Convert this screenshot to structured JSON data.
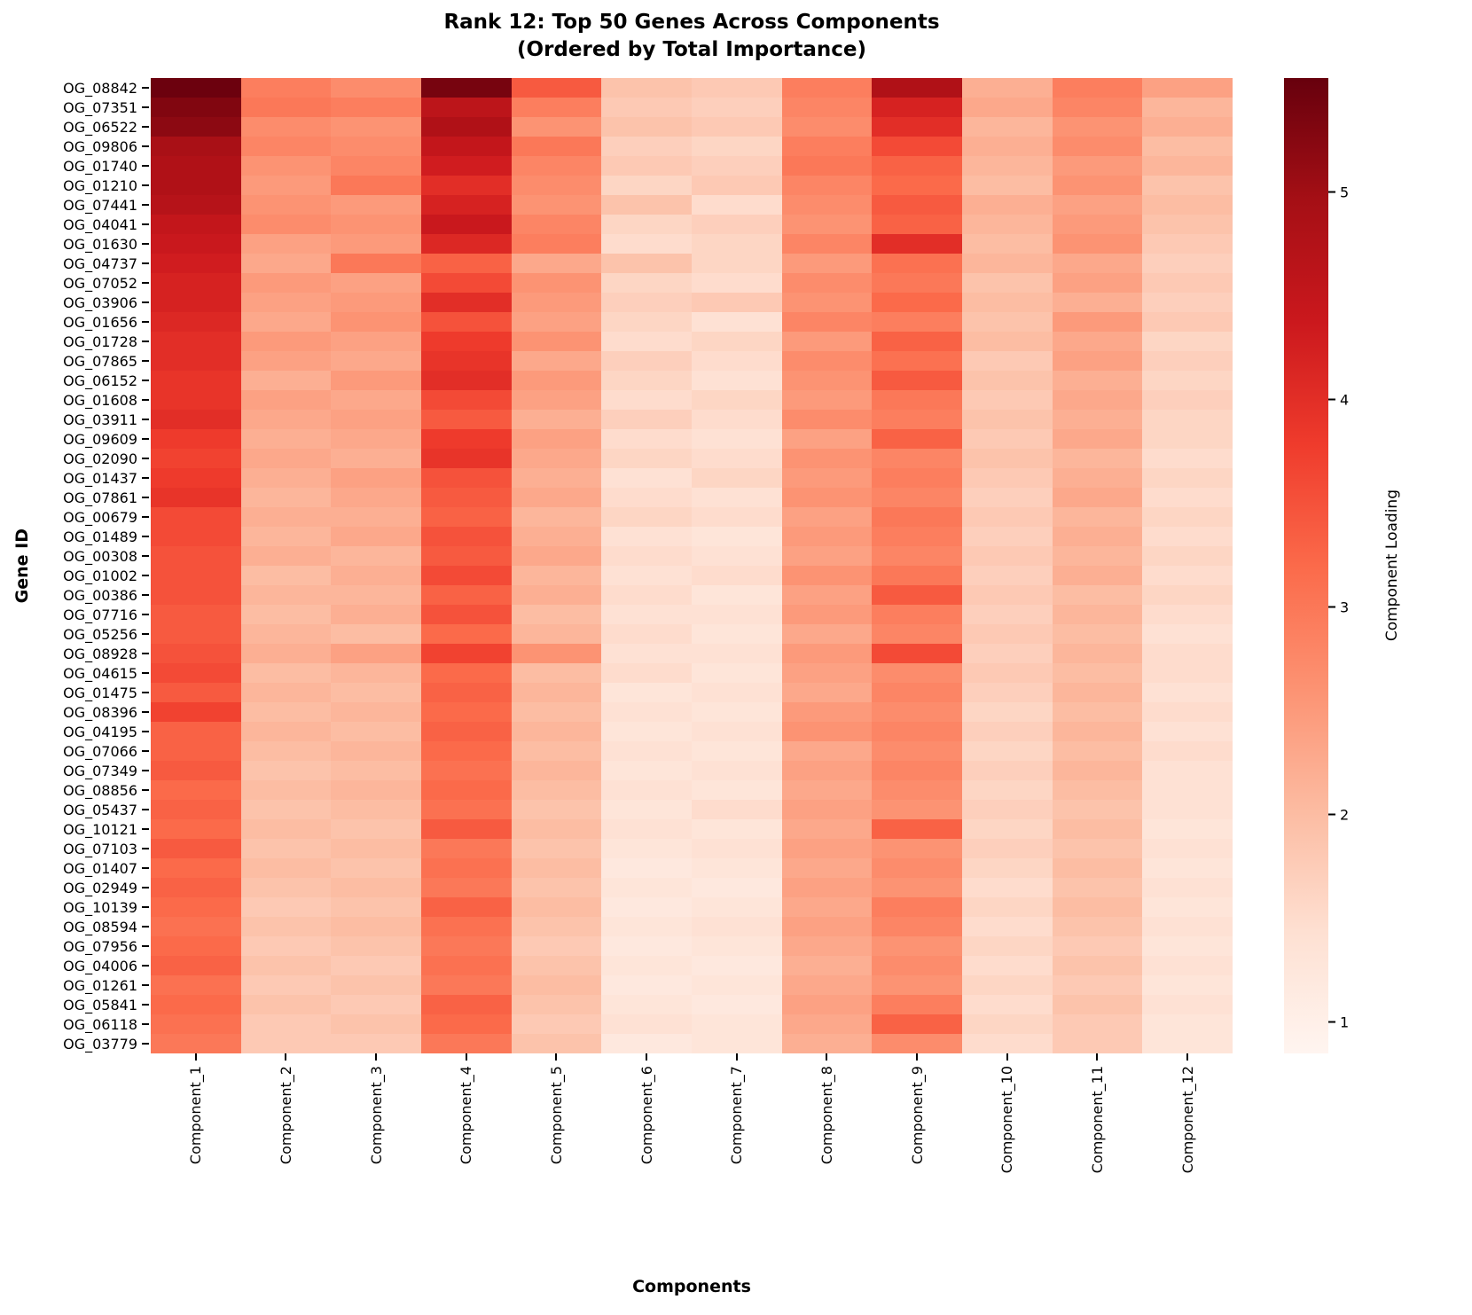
{
  "figure": {
    "title_line1": "Rank 12: Top 50 Genes Across Components",
    "title_line2": "(Ordered by Total Importance)",
    "xlabel": "Components",
    "ylabel": "Gene ID",
    "colorbar_label": "Component Loading"
  },
  "chart_data": {
    "type": "heatmap",
    "title": "Rank 12: Top 50 Genes Across Components (Ordered by Total Importance)",
    "xlabel": "Components",
    "ylabel": "Gene ID",
    "vmin": 0.85,
    "vmax": 5.55,
    "colorbar": {
      "label": "Component Loading",
      "ticks": [
        1,
        2,
        3,
        4,
        5
      ]
    },
    "colormap": {
      "name": "Reds",
      "stops": [
        [
          0.0,
          "#fff5f0"
        ],
        [
          0.125,
          "#fee0d2"
        ],
        [
          0.25,
          "#fcbba1"
        ],
        [
          0.375,
          "#fc9272"
        ],
        [
          0.5,
          "#fb6a4a"
        ],
        [
          0.625,
          "#ef3b2c"
        ],
        [
          0.75,
          "#cb181d"
        ],
        [
          0.875,
          "#a50f15"
        ],
        [
          1.0,
          "#67000d"
        ]
      ]
    },
    "categories": [
      "Component_1",
      "Component_2",
      "Component_3",
      "Component_4",
      "Component_5",
      "Component_6",
      "Component_7",
      "Component_8",
      "Component_9",
      "Component_10",
      "Component_11",
      "Component_12"
    ],
    "genes": [
      "OG_08842",
      "OG_07351",
      "OG_06522",
      "OG_09806",
      "OG_01740",
      "OG_01210",
      "OG_07441",
      "OG_04041",
      "OG_01630",
      "OG_04737",
      "OG_07052",
      "OG_03906",
      "OG_01656",
      "OG_01728",
      "OG_07865",
      "OG_06152",
      "OG_01608",
      "OG_03911",
      "OG_09609",
      "OG_02090",
      "OG_01437",
      "OG_07861",
      "OG_00679",
      "OG_01489",
      "OG_00308",
      "OG_01002",
      "OG_00386",
      "OG_07716",
      "OG_05256",
      "OG_08928",
      "OG_04615",
      "OG_01475",
      "OG_08396",
      "OG_04195",
      "OG_07066",
      "OG_07349",
      "OG_08856",
      "OG_05437",
      "OG_10121",
      "OG_07103",
      "OG_01407",
      "OG_02949",
      "OG_10139",
      "OG_08594",
      "OG_07956",
      "OG_04006",
      "OG_01261",
      "OG_05841",
      "OG_06118",
      "OG_03779"
    ],
    "matrix": [
      [
        5.5,
        2.9,
        2.7,
        5.4,
        3.4,
        1.9,
        1.8,
        2.9,
        4.8,
        2.2,
        2.9,
        2.4
      ],
      [
        5.3,
        3.0,
        2.9,
        4.6,
        2.9,
        1.8,
        1.7,
        2.8,
        4.2,
        2.3,
        2.8,
        2.1
      ],
      [
        5.2,
        2.7,
        2.6,
        4.8,
        2.6,
        1.9,
        1.8,
        2.7,
        4.0,
        2.1,
        2.6,
        2.2
      ],
      [
        4.9,
        2.8,
        2.7,
        4.5,
        3.0,
        1.7,
        1.6,
        2.9,
        3.6,
        2.2,
        2.7,
        2.0
      ],
      [
        4.8,
        2.6,
        2.8,
        4.3,
        2.8,
        1.8,
        1.7,
        3.0,
        3.3,
        2.1,
        2.5,
        2.1
      ],
      [
        4.8,
        2.5,
        3.0,
        4.0,
        2.7,
        1.6,
        1.8,
        2.8,
        3.2,
        2.0,
        2.6,
        1.9
      ],
      [
        4.7,
        2.6,
        2.5,
        4.2,
        2.6,
        1.9,
        1.5,
        2.7,
        3.4,
        2.2,
        2.4,
        2.0
      ],
      [
        4.5,
        2.7,
        2.6,
        4.4,
        2.8,
        1.6,
        1.7,
        2.6,
        3.3,
        2.1,
        2.5,
        1.9
      ],
      [
        4.4,
        2.4,
        2.5,
        4.1,
        2.9,
        1.5,
        1.6,
        2.8,
        4.0,
        2.0,
        2.6,
        1.8
      ],
      [
        4.3,
        2.3,
        3.0,
        3.3,
        2.3,
        1.9,
        1.6,
        2.5,
        3.1,
        2.1,
        2.3,
        1.7
      ],
      [
        4.2,
        2.5,
        2.4,
        3.6,
        2.6,
        1.6,
        1.5,
        2.7,
        3.0,
        1.9,
        2.4,
        1.8
      ],
      [
        4.2,
        2.4,
        2.5,
        4.0,
        2.5,
        1.7,
        1.8,
        2.6,
        3.2,
        2.0,
        2.2,
        1.7
      ],
      [
        4.1,
        2.3,
        2.6,
        3.5,
        2.4,
        1.6,
        1.4,
        2.8,
        2.9,
        1.9,
        2.5,
        1.8
      ],
      [
        4.0,
        2.5,
        2.4,
        3.8,
        2.6,
        1.5,
        1.6,
        2.5,
        3.3,
        2.0,
        2.3,
        1.6
      ],
      [
        4.0,
        2.4,
        2.3,
        3.9,
        2.3,
        1.7,
        1.5,
        2.7,
        3.1,
        1.8,
        2.4,
        1.7
      ],
      [
        3.9,
        2.2,
        2.5,
        4.0,
        2.5,
        1.6,
        1.4,
        2.6,
        3.4,
        1.9,
        2.2,
        1.6
      ],
      [
        3.9,
        2.4,
        2.3,
        3.6,
        2.4,
        1.5,
        1.6,
        2.5,
        3.0,
        1.8,
        2.3,
        1.7
      ],
      [
        4.0,
        2.3,
        2.4,
        3.4,
        2.2,
        1.7,
        1.5,
        2.7,
        2.9,
        1.9,
        2.2,
        1.6
      ],
      [
        3.8,
        2.2,
        2.3,
        3.8,
        2.4,
        1.5,
        1.4,
        2.4,
        3.3,
        1.8,
        2.3,
        1.6
      ],
      [
        3.7,
        2.3,
        2.2,
        3.9,
        2.3,
        1.6,
        1.5,
        2.6,
        2.8,
        1.9,
        2.1,
        1.5
      ],
      [
        3.8,
        2.2,
        2.4,
        3.5,
        2.2,
        1.4,
        1.6,
        2.5,
        2.9,
        1.8,
        2.2,
        1.6
      ],
      [
        3.9,
        2.1,
        2.3,
        3.4,
        2.3,
        1.5,
        1.4,
        2.6,
        2.8,
        1.7,
        2.3,
        1.5
      ],
      [
        3.6,
        2.2,
        2.2,
        3.3,
        2.1,
        1.6,
        1.5,
        2.4,
        3.0,
        1.8,
        2.1,
        1.6
      ],
      [
        3.6,
        2.1,
        2.3,
        3.5,
        2.2,
        1.4,
        1.3,
        2.5,
        2.9,
        1.7,
        2.2,
        1.5
      ],
      [
        3.5,
        2.2,
        2.1,
        3.4,
        2.3,
        1.5,
        1.4,
        2.4,
        2.8,
        1.8,
        2.1,
        1.6
      ],
      [
        3.5,
        2.0,
        2.2,
        3.6,
        2.1,
        1.4,
        1.5,
        2.6,
        3.0,
        1.7,
        2.2,
        1.5
      ],
      [
        3.5,
        2.1,
        2.1,
        3.3,
        2.2,
        1.5,
        1.3,
        2.4,
        3.4,
        1.8,
        2.0,
        1.6
      ],
      [
        3.4,
        2.0,
        2.2,
        3.5,
        2.0,
        1.4,
        1.4,
        2.5,
        2.9,
        1.7,
        2.1,
        1.5
      ],
      [
        3.4,
        2.1,
        2.0,
        3.2,
        2.1,
        1.5,
        1.3,
        2.3,
        2.8,
        1.8,
        2.0,
        1.4
      ],
      [
        3.5,
        2.2,
        2.4,
        3.7,
        2.6,
        1.4,
        1.4,
        2.5,
        3.6,
        1.7,
        2.1,
        1.5
      ],
      [
        3.6,
        2.0,
        2.1,
        3.2,
        2.0,
        1.5,
        1.3,
        2.4,
        2.7,
        1.8,
        2.0,
        1.5
      ],
      [
        3.4,
        2.1,
        2.0,
        3.3,
        2.1,
        1.3,
        1.4,
        2.3,
        2.8,
        1.7,
        2.1,
        1.4
      ],
      [
        3.7,
        2.0,
        2.1,
        3.2,
        2.0,
        1.4,
        1.3,
        2.5,
        2.7,
        1.6,
        2.0,
        1.5
      ],
      [
        3.3,
        2.1,
        2.0,
        3.3,
        2.1,
        1.3,
        1.4,
        2.6,
        2.8,
        1.7,
        2.1,
        1.4
      ],
      [
        3.3,
        2.0,
        2.1,
        3.2,
        2.0,
        1.4,
        1.3,
        2.3,
        2.7,
        1.6,
        2.0,
        1.5
      ],
      [
        3.4,
        1.9,
        2.0,
        3.1,
        2.1,
        1.3,
        1.4,
        2.4,
        2.8,
        1.7,
        2.1,
        1.4
      ],
      [
        3.2,
        2.0,
        2.1,
        3.2,
        2.0,
        1.4,
        1.3,
        2.3,
        2.7,
        1.6,
        2.0,
        1.4
      ],
      [
        3.3,
        1.9,
        2.0,
        3.1,
        1.9,
        1.3,
        1.5,
        2.4,
        2.6,
        1.7,
        1.9,
        1.4
      ],
      [
        3.2,
        2.0,
        1.9,
        3.4,
        2.0,
        1.4,
        1.3,
        2.3,
        3.3,
        1.6,
        2.0,
        1.3
      ],
      [
        3.4,
        1.9,
        2.0,
        3.0,
        1.9,
        1.3,
        1.4,
        2.4,
        2.6,
        1.7,
        1.9,
        1.4
      ],
      [
        3.2,
        2.0,
        1.9,
        3.1,
        2.0,
        1.2,
        1.3,
        2.3,
        2.7,
        1.6,
        2.0,
        1.3
      ],
      [
        3.3,
        1.9,
        2.0,
        3.0,
        1.9,
        1.3,
        1.2,
        2.4,
        2.6,
        1.5,
        1.9,
        1.4
      ],
      [
        3.2,
        1.8,
        1.9,
        3.3,
        2.0,
        1.2,
        1.3,
        2.3,
        2.9,
        1.6,
        2.0,
        1.3
      ],
      [
        3.1,
        1.9,
        2.0,
        3.1,
        1.9,
        1.3,
        1.4,
        2.4,
        2.8,
        1.5,
        1.9,
        1.4
      ],
      [
        3.2,
        1.8,
        1.9,
        3.0,
        1.8,
        1.2,
        1.3,
        2.3,
        2.6,
        1.6,
        1.8,
        1.3
      ],
      [
        3.3,
        1.9,
        1.8,
        3.1,
        1.9,
        1.3,
        1.2,
        2.2,
        2.7,
        1.5,
        1.9,
        1.4
      ],
      [
        3.1,
        1.8,
        1.9,
        3.0,
        2.0,
        1.2,
        1.3,
        2.3,
        2.6,
        1.6,
        1.8,
        1.3
      ],
      [
        3.2,
        1.9,
        1.8,
        3.3,
        1.9,
        1.3,
        1.2,
        2.4,
        2.9,
        1.5,
        1.9,
        1.4
      ],
      [
        3.1,
        1.8,
        1.9,
        3.2,
        1.8,
        1.4,
        1.3,
        2.3,
        3.3,
        1.6,
        1.8,
        1.3
      ],
      [
        3.0,
        1.8,
        1.8,
        3.0,
        1.9,
        1.2,
        1.3,
        2.2,
        2.7,
        1.5,
        1.8,
        1.3
      ]
    ]
  }
}
